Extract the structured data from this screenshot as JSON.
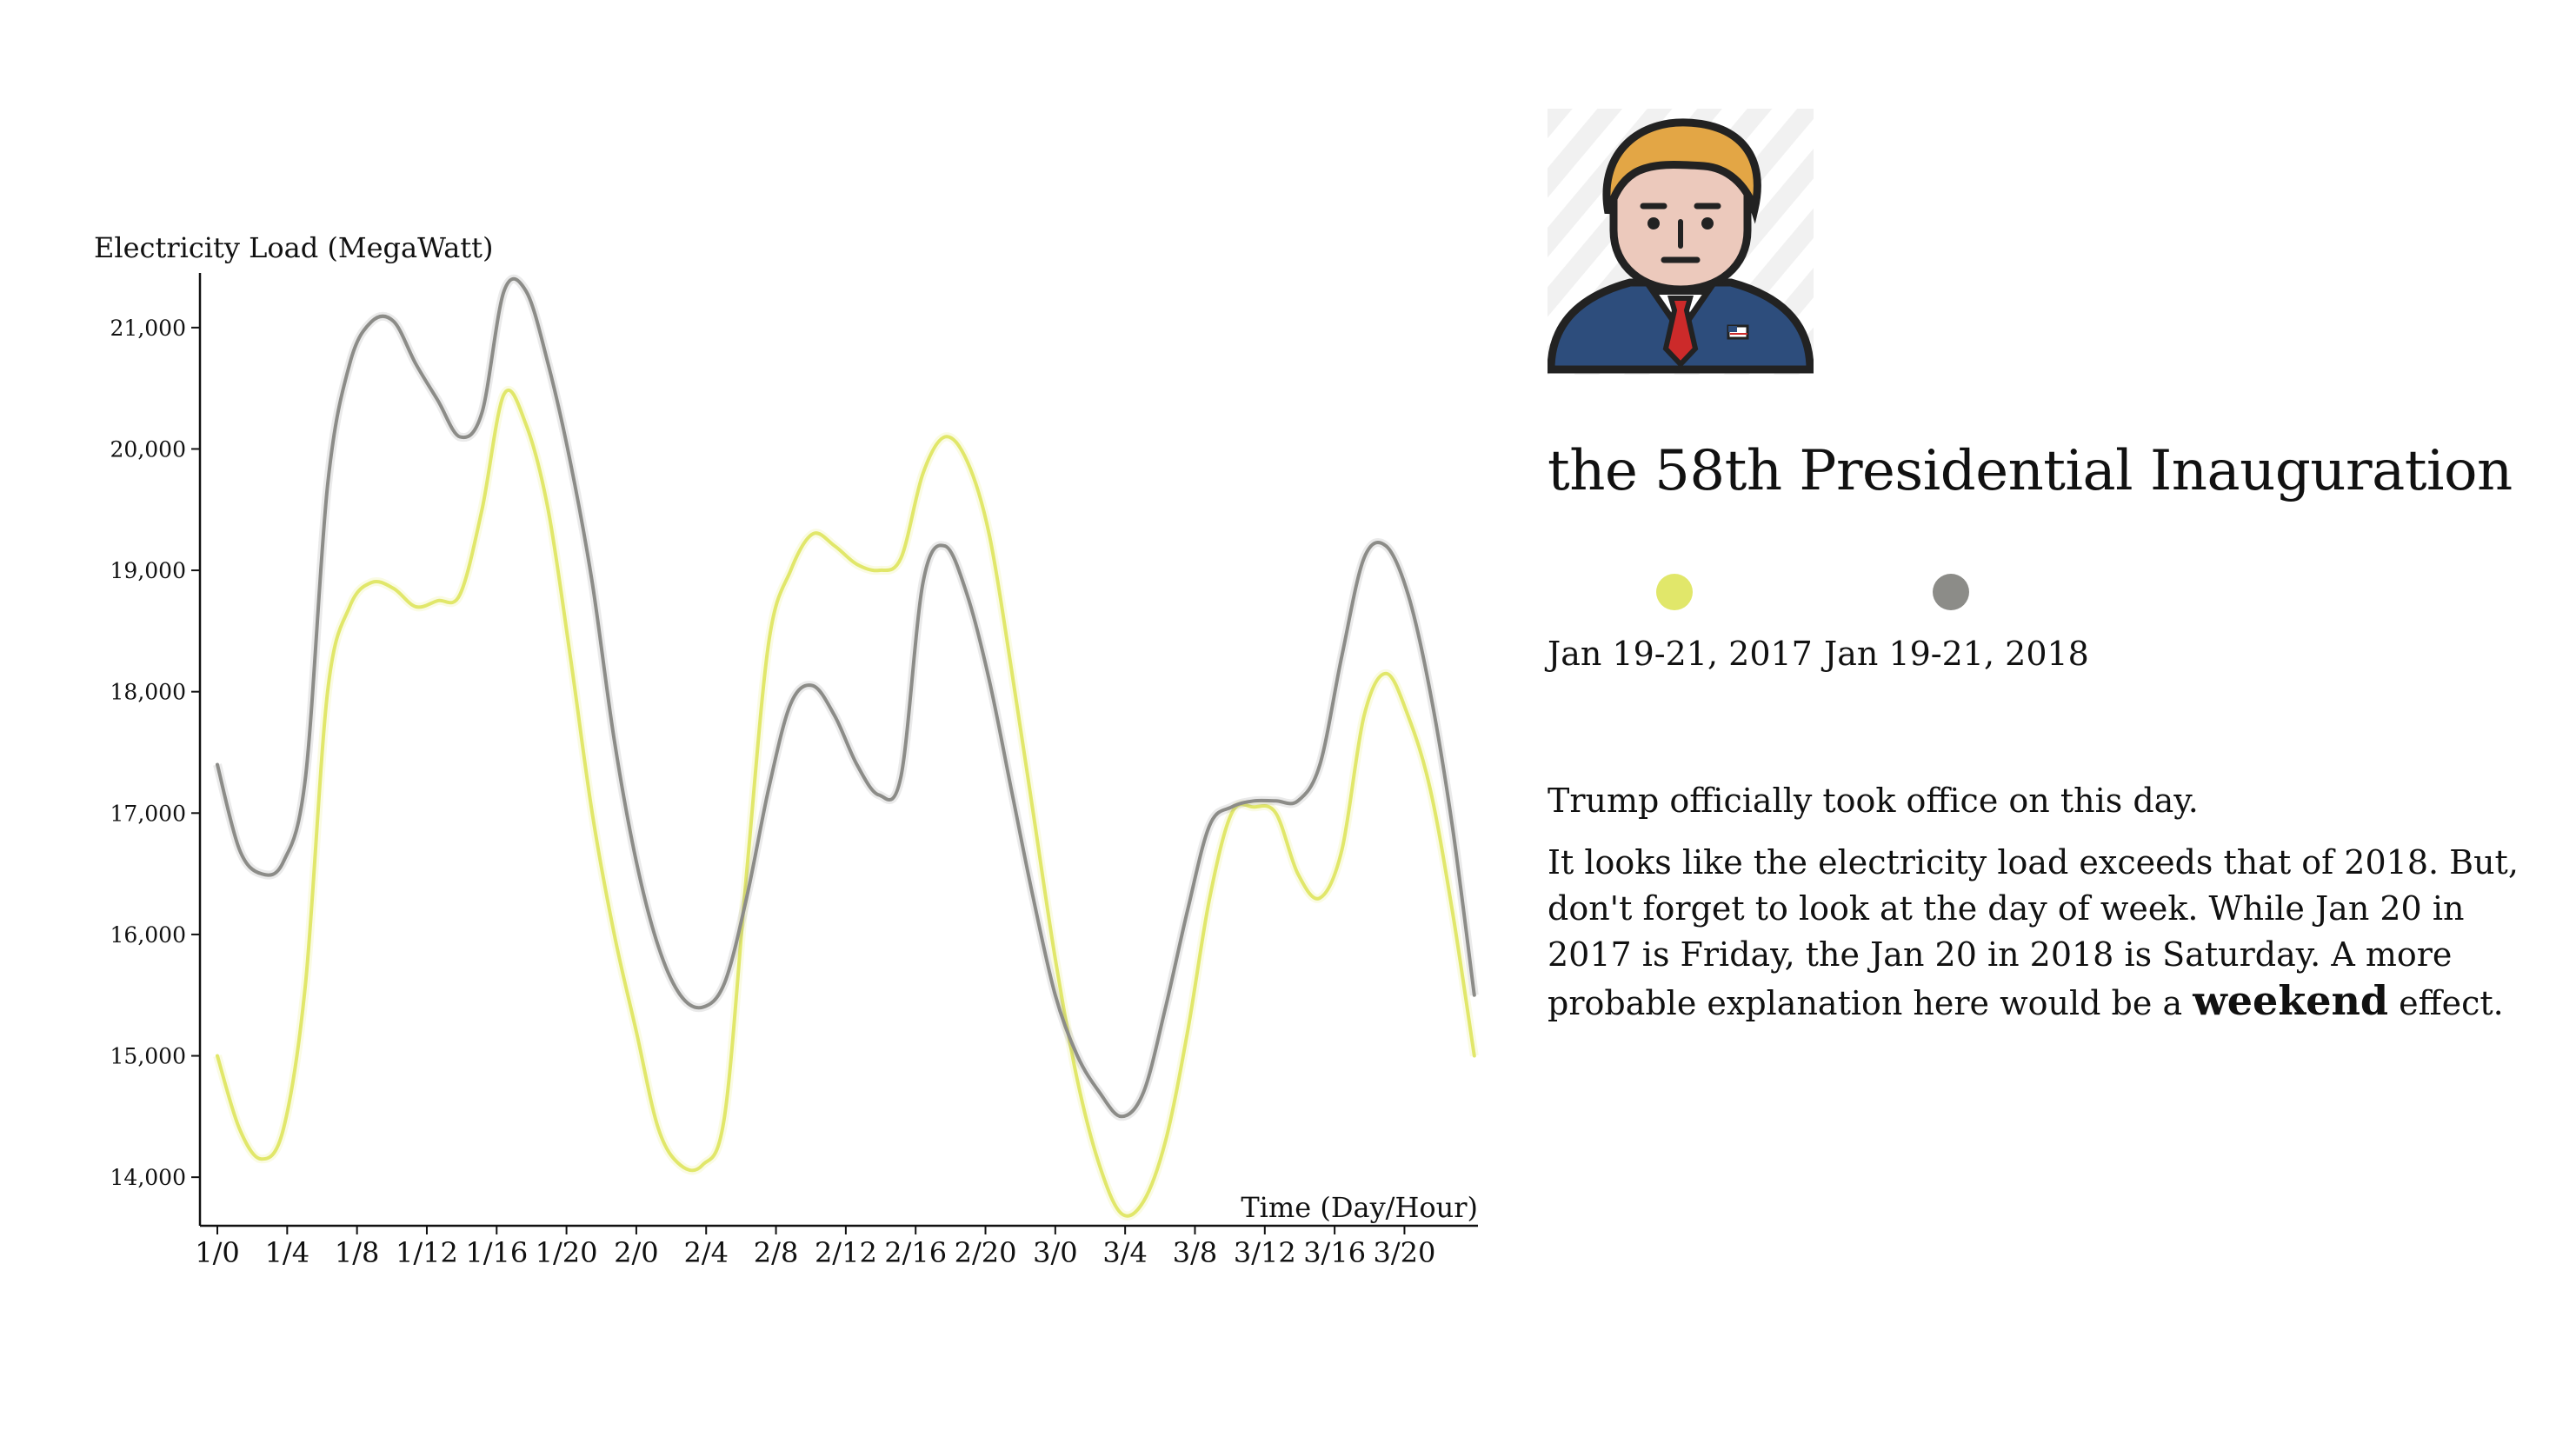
{
  "chart_data": {
    "type": "line",
    "xlabel": "Time (Day/Hour)",
    "ylabel": "Electricity Load (MegaWatt)",
    "ylim": [
      13600,
      21450
    ],
    "yticks": [
      14000,
      15000,
      16000,
      17000,
      18000,
      19000,
      20000,
      21000
    ],
    "xticks": [
      {
        "h": 0,
        "label": "1/0"
      },
      {
        "h": 4,
        "label": "1/4"
      },
      {
        "h": 8,
        "label": "1/8"
      },
      {
        "h": 12,
        "label": "1/12"
      },
      {
        "h": 16,
        "label": "1/16"
      },
      {
        "h": 20,
        "label": "1/20"
      },
      {
        "h": 24,
        "label": "2/0"
      },
      {
        "h": 28,
        "label": "2/4"
      },
      {
        "h": 32,
        "label": "2/8"
      },
      {
        "h": 36,
        "label": "2/12"
      },
      {
        "h": 40,
        "label": "2/16"
      },
      {
        "h": 44,
        "label": "2/20"
      },
      {
        "h": 48,
        "label": "3/0"
      },
      {
        "h": 52,
        "label": "3/4"
      },
      {
        "h": 56,
        "label": "3/8"
      },
      {
        "h": 60,
        "label": "3/12"
      },
      {
        "h": 64,
        "label": "3/16"
      },
      {
        "h": 68,
        "label": "3/20"
      }
    ],
    "xlim": [
      0,
      73
    ],
    "grid": false,
    "series": [
      {
        "name": "Jan 19-21, 2017",
        "color": "#e1e76a",
        "values": [
          15000,
          14400,
          14150,
          14400,
          15600,
          18000,
          18700,
          18900,
          18850,
          18700,
          18750,
          18800,
          19500,
          20450,
          20200,
          19500,
          18300,
          17000,
          16000,
          15200,
          14400,
          14100,
          14100,
          14500,
          16500,
          18400,
          19000,
          19300,
          19200,
          19050,
          19000,
          19100,
          19800,
          20100,
          19900,
          19300,
          18200,
          17000,
          15800,
          14800,
          14100,
          13700,
          13800,
          14300,
          15200,
          16300,
          17000,
          17050,
          17000,
          16500,
          16300,
          16700,
          17800,
          18150,
          17800,
          17200,
          16200,
          15000
        ]
      },
      {
        "name": "Jan 19-21, 2018",
        "color": "#8c8c88",
        "values": [
          17400,
          16700,
          16500,
          16600,
          17300,
          19700,
          20700,
          21050,
          21050,
          20700,
          20400,
          20100,
          20300,
          21300,
          21300,
          20700,
          19900,
          18900,
          17600,
          16600,
          15900,
          15500,
          15400,
          15600,
          16300,
          17200,
          17900,
          18050,
          17800,
          17400,
          17150,
          17300,
          18900,
          19200,
          18800,
          18100,
          17200,
          16300,
          15500,
          15000,
          14700,
          14500,
          14700,
          15400,
          16200,
          16900,
          17050,
          17100,
          17100,
          17100,
          17400,
          18300,
          19100,
          19200,
          18800,
          18000,
          16900,
          15500
        ]
      }
    ]
  },
  "side": {
    "title": "the 58th Presidential Inauguration",
    "legend": [
      {
        "label": "Jan 19-21, 2017",
        "color": "#e1e76a"
      },
      {
        "label": "Jan 19-21, 2018",
        "color": "#8c8c88"
      }
    ],
    "desc_line1": "Trump officially took office on this day.",
    "desc_para2_a": "It looks like the electricity load exceeds that of 2018. But, don't forget to look at the day of week. While Jan 20 in 2017 is Friday, the Jan 20 in 2018 is Saturday. A more probable explanation here would be a ",
    "desc_para2_em": "weekend",
    "desc_para2_b": " effect."
  }
}
